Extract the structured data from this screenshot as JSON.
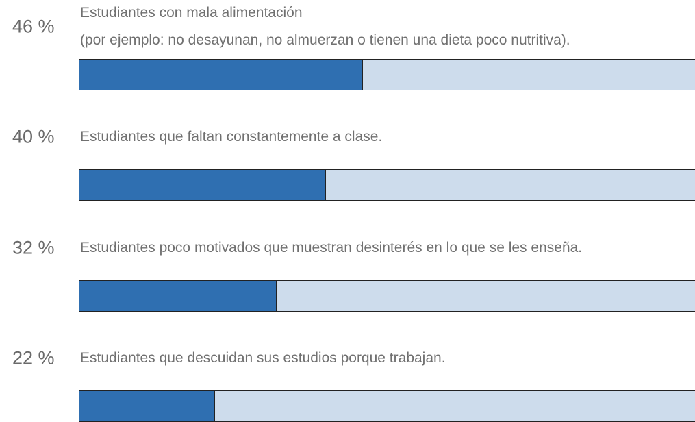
{
  "chart_data": {
    "type": "bar",
    "orientation": "horizontal",
    "categories": [
      "Estudiantes con mala alimentación\n(por ejemplo: no desayunan, no almuerzan o tienen una dieta poco nutritiva).",
      "Estudiantes que faltan constantemente a clase.",
      "Estudiantes poco motivados que muestran desinterés en lo que se les enseña.",
      "Estudiantes que descuidan sus estudios porque trabajan."
    ],
    "values": [
      46,
      40,
      32,
      22
    ],
    "value_labels": [
      "46 %",
      "40 %",
      "32 %",
      "22 %"
    ],
    "xlim": [
      0,
      100
    ],
    "color": "#2f6fb1",
    "track_color": "#cddcec"
  }
}
